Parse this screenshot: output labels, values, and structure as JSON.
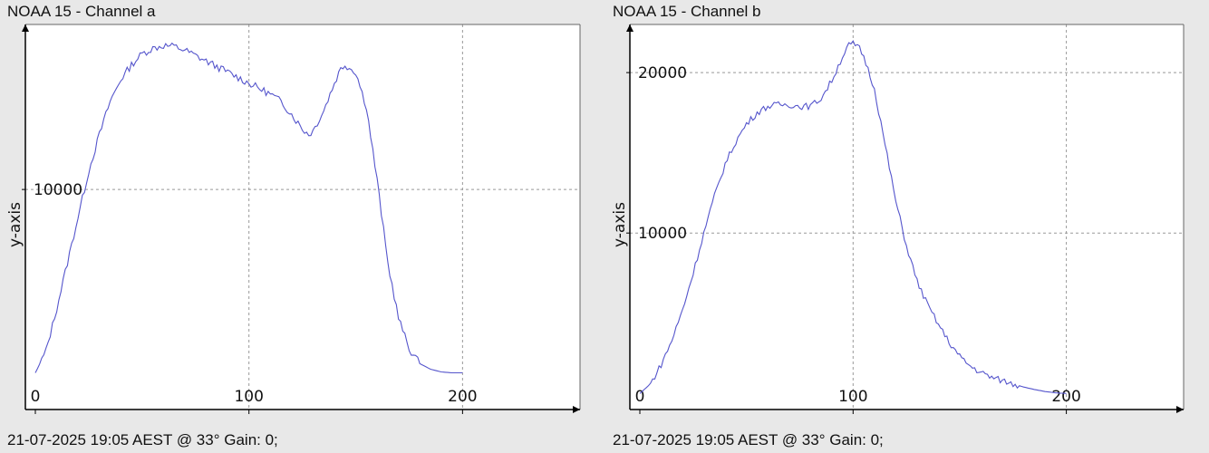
{
  "charts": [
    {
      "title": "NOAA 15 - Channel a",
      "footer": "21-07-2025 19:05 AEST @ 33° Gain: 0;"
    },
    {
      "title": "NOAA 15 - Channel b",
      "footer": "21-07-2025 19:05 AEST @ 33° Gain: 0;"
    }
  ],
  "colors": {
    "line": "#5555cc",
    "grid": "#999999",
    "axis": "#000000",
    "plot_bg": "#ffffff"
  },
  "chart_data": [
    {
      "type": "line",
      "title": "NOAA 15 - Channel a",
      "xlabel": "",
      "ylabel": "y-axis",
      "xlim": [
        0,
        255
      ],
      "ylim": [
        -2000,
        19000
      ],
      "xticks": [
        0,
        100,
        200
      ],
      "yticks": [
        10000
      ],
      "grid": true,
      "x": [
        0,
        5,
        10,
        15,
        20,
        25,
        30,
        35,
        40,
        45,
        50,
        55,
        60,
        65,
        70,
        75,
        80,
        85,
        90,
        95,
        100,
        105,
        110,
        115,
        120,
        125,
        128,
        130,
        135,
        140,
        143,
        145,
        150,
        155,
        160,
        165,
        170,
        175,
        180,
        185,
        190,
        195,
        200
      ],
      "values": [
        0,
        1200,
        3500,
        6000,
        8500,
        11000,
        13000,
        14800,
        16000,
        16800,
        17400,
        17700,
        17850,
        17800,
        17600,
        17300,
        17000,
        16700,
        16400,
        16100,
        15800,
        15500,
        15200,
        14800,
        14100,
        13300,
        13000,
        13200,
        14300,
        15800,
        16600,
        16800,
        16400,
        14500,
        10500,
        6000,
        3000,
        1300,
        500,
        200,
        50,
        0,
        0
      ]
    },
    {
      "type": "line",
      "title": "NOAA 15 - Channel b",
      "xlabel": "",
      "ylabel": "y-axis",
      "xlim": [
        0,
        255
      ],
      "ylim": [
        -1000,
        23000
      ],
      "xticks": [
        0,
        100,
        200
      ],
      "yticks": [
        10000,
        20000
      ],
      "grid": true,
      "x": [
        0,
        5,
        10,
        15,
        20,
        25,
        30,
        35,
        40,
        45,
        50,
        55,
        60,
        65,
        70,
        75,
        80,
        85,
        90,
        95,
        98,
        100,
        103,
        105,
        110,
        115,
        120,
        125,
        130,
        135,
        140,
        145,
        150,
        155,
        160,
        165,
        170,
        175,
        180,
        185,
        190,
        195,
        200
      ],
      "values": [
        0,
        600,
        1800,
        3300,
        5200,
        7500,
        10000,
        12300,
        14300,
        15700,
        16800,
        17500,
        17900,
        18000,
        18000,
        17900,
        17900,
        18400,
        19500,
        21000,
        21700,
        21800,
        21500,
        21000,
        19000,
        15500,
        12000,
        9200,
        7000,
        5500,
        4300,
        3200,
        2300,
        1700,
        1300,
        1000,
        800,
        600,
        400,
        250,
        120,
        40,
        0
      ]
    }
  ]
}
